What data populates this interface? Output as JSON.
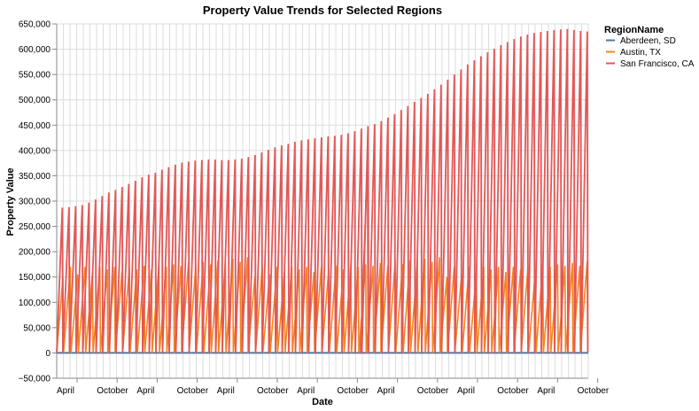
{
  "chart_data": {
    "type": "line",
    "title": "Property Value Trends for Selected Regions",
    "xlabel": "Date",
    "ylabel": "Property Value",
    "ylim": [
      -50000,
      650000
    ],
    "yticks": [
      -50000,
      0,
      50000,
      100000,
      150000,
      200000,
      250000,
      300000,
      350000,
      400000,
      450000,
      500000,
      550000,
      600000,
      650000
    ],
    "ytick_labels": [
      "−50,000",
      "0",
      "50,000",
      "100,000",
      "150,000",
      "200,000",
      "250,000",
      "300,000",
      "350,000",
      "400,000",
      "450,000",
      "500,000",
      "550,000",
      "600,000",
      "650,000"
    ],
    "xticks": [
      "April",
      "October",
      "April",
      "October",
      "April",
      "October",
      "April",
      "October",
      "April",
      "October",
      "April",
      "October",
      "April",
      "October"
    ],
    "grid": true,
    "legend": {
      "title": "RegionName",
      "position": "right",
      "entries": [
        "Aberdeen, SD",
        "Austin, TX",
        "San Francisco, CA"
      ]
    },
    "series": [
      {
        "name": "Aberdeen, SD",
        "color": "#4c78a8",
        "values": [
          0
        ]
      },
      {
        "name": "Austin, TX",
        "color": "#f58518",
        "peaks": [
          150000,
          170000,
          155000,
          170000,
          160000,
          170000,
          165000,
          170000,
          160000,
          170000,
          165000,
          172000,
          165000,
          175000,
          170000,
          175000,
          172000,
          178000,
          172000,
          180000,
          175000,
          183000,
          178000,
          186000,
          180000,
          189000
        ]
      },
      {
        "name": "San Francisco, CA",
        "color": "#e45756",
        "peaks": [
          287000,
          288000,
          290000,
          292000,
          297000,
          303000,
          310000,
          317000,
          322000,
          328000,
          334000,
          340000,
          347000,
          352000,
          356000,
          362000,
          367000,
          372000,
          376000,
          378000,
          380000,
          381000,
          382000,
          382000,
          381000,
          381000,
          382000,
          384000,
          387000,
          391000,
          396000,
          401000,
          406000,
          410000,
          413000,
          417000,
          420000,
          422000,
          424000,
          426000,
          428000,
          429000,
          431000,
          434000,
          438000,
          443000,
          448000,
          452000,
          458000,
          465000,
          472000,
          480000,
          488000,
          496000,
          504000,
          512000,
          521000,
          530000,
          540000,
          550000,
          560000,
          570000,
          578000,
          586000,
          594000,
          601000,
          608000,
          614000,
          620000,
          625000,
          629000,
          632000,
          634000,
          636000,
          638000,
          639000,
          640000,
          638000,
          636000,
          635000
        ]
      }
    ],
    "annotation_spike": {
      "series": "San Francisco, CA",
      "value": 385000
    }
  }
}
